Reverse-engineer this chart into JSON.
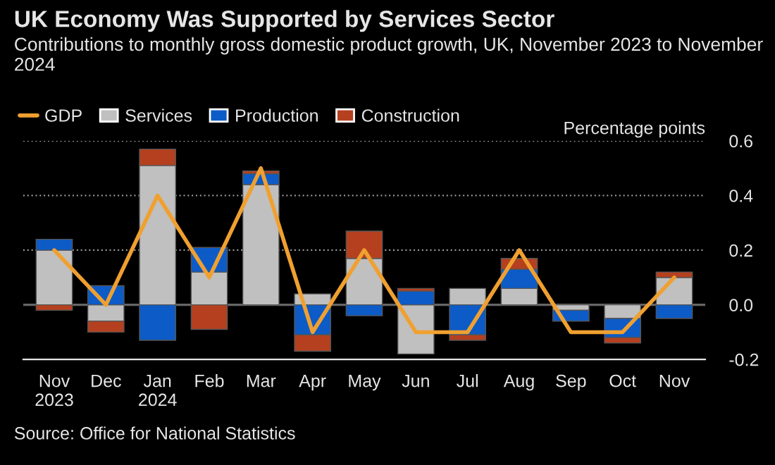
{
  "chart_data": {
    "type": "bar",
    "stacked": true,
    "title": "UK Economy Was Supported by Services Sector",
    "subtitle": "Contributions to monthly gross domestic product growth, UK, November 2023 to November 2024",
    "ylabel": "Percentage points",
    "categories": [
      "Nov\n2023",
      "Dec",
      "Jan\n2024",
      "Feb",
      "Mar",
      "Apr",
      "May",
      "Jun",
      "Jul",
      "Aug",
      "Sep",
      "Oct",
      "Nov"
    ],
    "series": [
      {
        "name": "GDP",
        "type": "line",
        "color": "#f0a030",
        "values": [
          0.2,
          0.0,
          0.4,
          0.1,
          0.5,
          -0.1,
          0.2,
          -0.1,
          -0.1,
          0.2,
          -0.1,
          -0.1,
          0.1
        ]
      },
      {
        "name": "Services",
        "color": "#c0c0c0",
        "values": [
          0.2,
          -0.06,
          0.51,
          0.12,
          0.44,
          0.04,
          0.17,
          -0.18,
          0.06,
          0.06,
          -0.02,
          -0.05,
          0.1
        ]
      },
      {
        "name": "Production",
        "color": "#0d5bc6",
        "values": [
          0.04,
          0.07,
          -0.13,
          0.09,
          0.04,
          -0.11,
          -0.04,
          0.05,
          -0.11,
          0.07,
          -0.04,
          -0.07,
          -0.05
        ]
      },
      {
        "name": "Construction",
        "color": "#b5401f",
        "values": [
          -0.02,
          -0.04,
          0.06,
          -0.09,
          0.01,
          -0.06,
          0.1,
          0.01,
          -0.02,
          0.04,
          null,
          -0.02,
          0.02
        ]
      }
    ],
    "ylim": [
      -0.2,
      0.6
    ],
    "yticks": [
      {
        "value": -0.2,
        "label": "-0.2"
      },
      {
        "value": 0,
        "label": "0.0"
      },
      0.2,
      0.4,
      0.6
    ],
    "grid": "y",
    "legend": "top left",
    "annotations": [
      "Source: Office for National Statistics"
    ]
  }
}
